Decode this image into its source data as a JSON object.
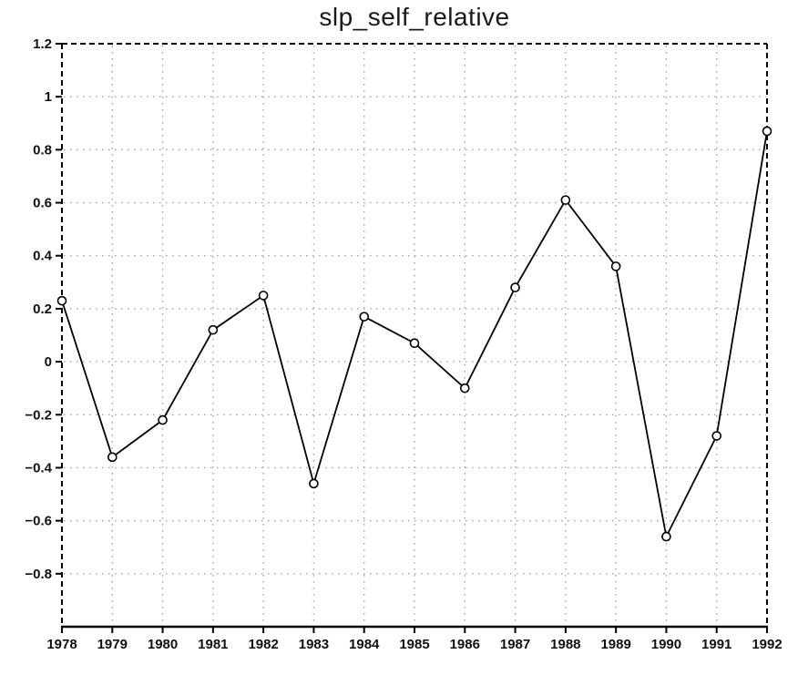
{
  "chart": {
    "title": "slp_self_relative"
  },
  "chart_data": {
    "type": "line",
    "title": "slp_self_relative",
    "xlabel": "",
    "ylabel": "",
    "x": [
      1978,
      1979,
      1980,
      1981,
      1982,
      1983,
      1984,
      1985,
      1986,
      1987,
      1988,
      1989,
      1990,
      1991,
      1992
    ],
    "series": [
      {
        "name": "slp_self_relative",
        "values": [
          0.23,
          -0.36,
          -0.22,
          0.12,
          0.25,
          -0.46,
          0.17,
          0.07,
          -0.1,
          0.28,
          0.61,
          0.36,
          -0.66,
          -0.28,
          0.87
        ]
      }
    ],
    "xlim": [
      1978,
      1992
    ],
    "ylim": [
      -1.0,
      1.2
    ],
    "xticks": [
      1978,
      1979,
      1980,
      1981,
      1982,
      1983,
      1984,
      1985,
      1986,
      1987,
      1988,
      1989,
      1990,
      1991,
      1992
    ],
    "xtick_labels": [
      "1978",
      "1979",
      "1980",
      "1981",
      "1982",
      "1983",
      "1984",
      "1985",
      "1986",
      "1987",
      "1988",
      "1989",
      "1990",
      "1991",
      "1992"
    ],
    "yticks": [
      1.2,
      1.0,
      0.8,
      0.6,
      0.4,
      0.2,
      0.0,
      -0.2,
      -0.4,
      -0.6,
      -0.8
    ],
    "ytick_labels": [
      "1.2",
      "1",
      "0.8",
      "0.6",
      "0.4",
      "0.2",
      "0",
      "−0.2",
      "−0.4",
      "−0.6",
      "−0.8"
    ],
    "grid": true,
    "grid_style": "dotted",
    "legend": "none",
    "marker": "open-circle",
    "frame": {
      "top": "dashed",
      "left": "dashed",
      "right": "dashed",
      "bottom": "solid"
    },
    "colors": {
      "line": "#000000",
      "marker_stroke": "#000000",
      "marker_fill": "#ffffff",
      "grid": "#a8a8a8",
      "frame": "#000000",
      "text": "#111111",
      "background": "#ffffff"
    }
  }
}
